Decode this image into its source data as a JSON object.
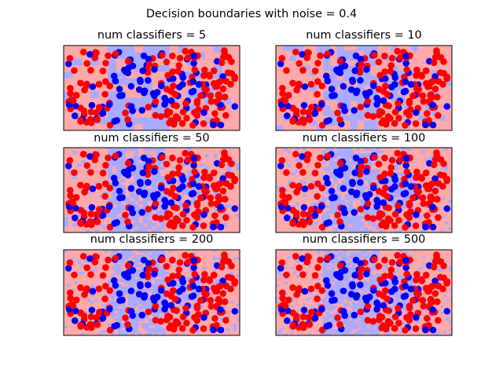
{
  "figure": {
    "suptitle": "Decision boundaries with noise = 0.4"
  },
  "colors": {
    "class0_point": "#0000ff",
    "class1_point": "#ff0000",
    "class0_region": "#aaaaff",
    "class1_region": "#ffaaaa",
    "frame": "#000000"
  },
  "chart_data": [
    {
      "type": "scatter",
      "title": "num classifiers = 5",
      "num_classifiers": 5,
      "xlabel": "",
      "ylabel": "",
      "xticks": false,
      "yticks": false,
      "background": "decision-region"
    },
    {
      "type": "scatter",
      "title": "num classifiers = 10",
      "num_classifiers": 10,
      "xlabel": "",
      "ylabel": "",
      "xticks": false,
      "yticks": false,
      "background": "decision-region"
    },
    {
      "type": "scatter",
      "title": "num classifiers = 50",
      "num_classifiers": 50,
      "xlabel": "",
      "ylabel": "",
      "xticks": false,
      "yticks": false,
      "background": "decision-region"
    },
    {
      "type": "scatter",
      "title": "num classifiers = 100",
      "num_classifiers": 100,
      "xlabel": "",
      "ylabel": "",
      "xticks": false,
      "yticks": false,
      "background": "decision-region"
    },
    {
      "type": "scatter",
      "title": "num classifiers = 200",
      "num_classifiers": 200,
      "xlabel": "",
      "ylabel": "",
      "xticks": false,
      "yticks": false,
      "background": "decision-region"
    },
    {
      "type": "scatter",
      "title": "num classifiers = 500",
      "num_classifiers": 500,
      "xlabel": "",
      "ylabel": "",
      "xticks": false,
      "yticks": false,
      "background": "decision-region"
    }
  ]
}
